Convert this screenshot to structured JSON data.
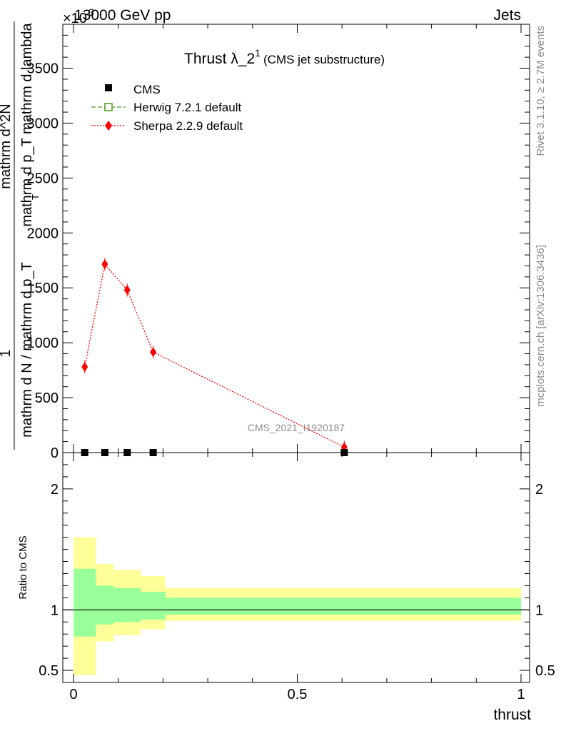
{
  "header": {
    "beam": "13000 GeV pp",
    "process": "Jets",
    "exponent": "×10",
    "exponent_power": "3",
    "title_main": "Thrust λ_2",
    "title_sup": "1",
    "title_sub": "(CMS jet substructure)",
    "watermark": "CMS_2021_I1920187"
  },
  "side": {
    "rivet": "Rivet 3.1.10, ≥ 2.7M events",
    "mcplots": "mcplots.cern.ch [arXiv:1306.3436]"
  },
  "colors": {
    "cms": "#000000",
    "herwig": "#4a9b1e",
    "sherpa": "#ff0000",
    "band_outer": "#ffff99",
    "band_inner": "#99ff99"
  },
  "chart_data": [
    {
      "type": "line",
      "panel": "main",
      "ylabel_numerator": "1",
      "ylabel_denominator": "mathrm d N / mathrm d p_T",
      "ylabel_main_num": "mathrm d^2N",
      "ylabel_main_den": "mathrm d p_T mathrm d lambda",
      "ylabel_sub_T": "T",
      "xlim": [
        0,
        1
      ],
      "ylim": [
        0,
        3900
      ],
      "y_ticks": [
        0,
        500,
        1000,
        1500,
        2000,
        2500,
        3000,
        3500
      ],
      "y_tick_labels": [
        "0",
        "500",
        "1000",
        "1500",
        "2000",
        "2500",
        "3000",
        "3500"
      ],
      "series": [
        {
          "name": "CMS",
          "x": [
            0.025,
            0.07,
            0.12,
            0.178,
            0.605
          ],
          "y": [
            0,
            0,
            0,
            0,
            0
          ]
        },
        {
          "name": "Herwig 7.2.1 default",
          "x": [
            0.025,
            0.07,
            0.12,
            0.178,
            0.605
          ],
          "y": [
            0,
            0,
            0,
            0,
            0
          ]
        },
        {
          "name": "Sherpa 2.2.9 default",
          "x": [
            0.025,
            0.07,
            0.12,
            0.178,
            0.605
          ],
          "y": [
            780,
            1715,
            1480,
            915,
            50
          ]
        }
      ]
    },
    {
      "type": "area",
      "panel": "ratio",
      "ylabel": "Ratio to CMS",
      "xlabel": "thrust",
      "xlim": [
        0,
        1
      ],
      "ylim": [
        0.4,
        2.3
      ],
      "x_ticks": [
        0,
        0.5,
        1
      ],
      "x_tick_labels": [
        "0",
        "0.5",
        "1"
      ],
      "y_ticks": [
        0.5,
        1,
        2
      ],
      "y_tick_labels": [
        "0.5",
        "1",
        "2"
      ],
      "bins": [
        {
          "x": [
            0.0,
            0.05
          ],
          "outer": [
            0.46,
            1.6
          ],
          "inner": [
            0.78,
            1.34
          ]
        },
        {
          "x": [
            0.05,
            0.09
          ],
          "outer": [
            0.74,
            1.38
          ],
          "inner": [
            0.88,
            1.2
          ]
        },
        {
          "x": [
            0.09,
            0.15
          ],
          "outer": [
            0.79,
            1.33
          ],
          "inner": [
            0.9,
            1.18
          ]
        },
        {
          "x": [
            0.15,
            0.205
          ],
          "outer": [
            0.84,
            1.28
          ],
          "inner": [
            0.92,
            1.15
          ]
        },
        {
          "x": [
            0.205,
            1.0
          ],
          "outer": [
            0.91,
            1.18
          ],
          "inner": [
            0.96,
            1.1
          ]
        }
      ]
    }
  ]
}
